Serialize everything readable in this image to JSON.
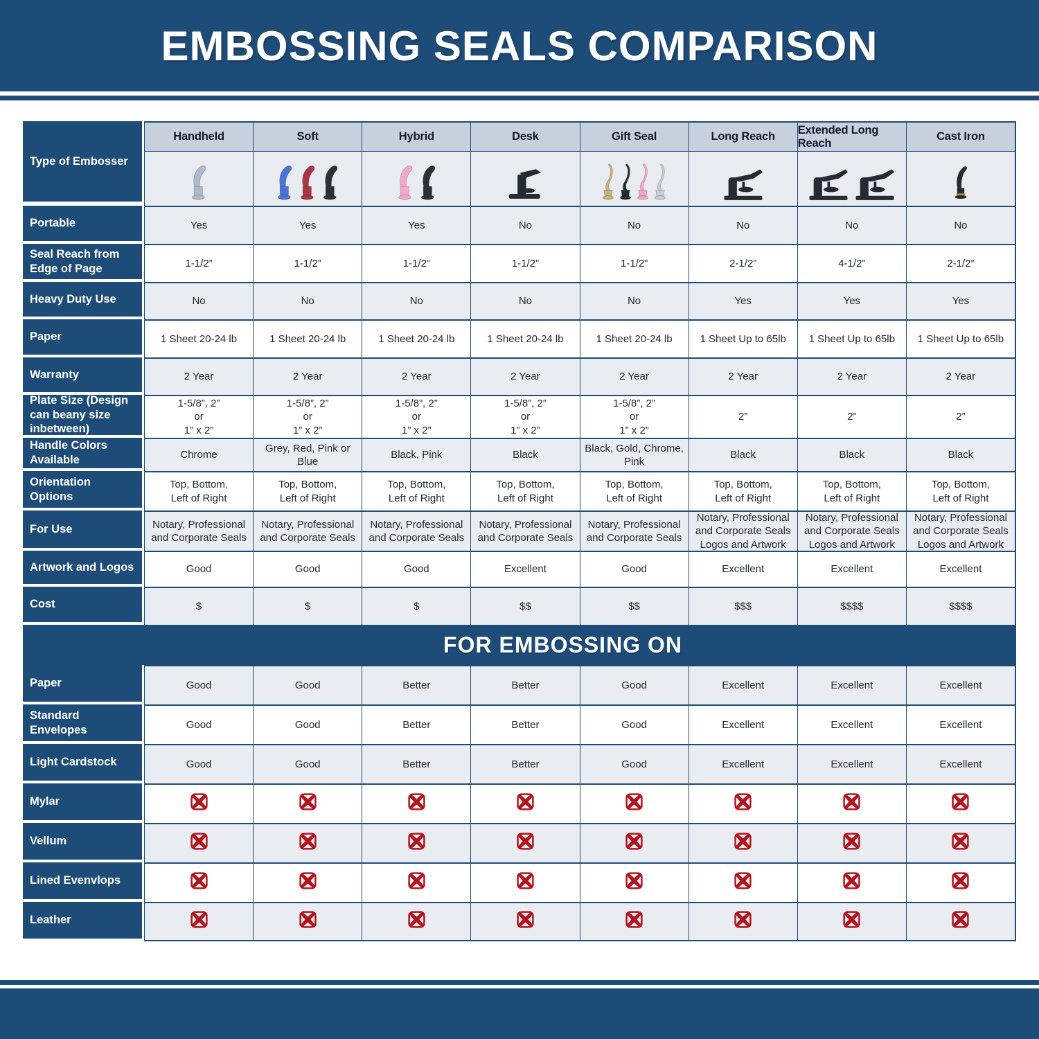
{
  "title": "EMBOSSING SEALS COMPARISON",
  "embossing_section_title": "FOR EMBOSSING ON",
  "type_of_embosser_label": "Type of Embosser",
  "columns": [
    "Handheld",
    "Soft",
    "Hybrid",
    "Desk",
    "Gift Seal",
    "Long Reach",
    "Extended Long Reach",
    "Cast Iron"
  ],
  "embosser_images": [
    {
      "column": "Handheld",
      "style": "hand",
      "colors": [
        "#aeb9cc"
      ]
    },
    {
      "column": "Soft",
      "style": "hand",
      "colors": [
        "#4a74d8",
        "#a93642",
        "#2c3038"
      ]
    },
    {
      "column": "Hybrid",
      "style": "hand",
      "colors": [
        "#f2a8cc",
        "#2c3038"
      ]
    },
    {
      "column": "Desk",
      "style": "desk",
      "colors": [
        "#262a33"
      ]
    },
    {
      "column": "Gift Seal",
      "style": "gift",
      "colors": [
        "#c9b478",
        "#262a33",
        "#f2a8cc",
        "#c6cdd9"
      ]
    },
    {
      "column": "Long Reach",
      "style": "press",
      "colors": [
        "#262a33"
      ]
    },
    {
      "column": "Extended Long Reach",
      "style": "press",
      "colors": [
        "#262a33",
        "#262a33"
      ]
    },
    {
      "column": "Cast Iron",
      "style": "cast",
      "colors": [
        "#262a33"
      ]
    }
  ],
  "spec_rows": [
    {
      "label": "Portable",
      "values": [
        "Yes",
        "Yes",
        "Yes",
        "No",
        "No",
        "No",
        "No",
        "No"
      ]
    },
    {
      "label": "Seal Reach from Edge of Page",
      "values": [
        "1-1/2”",
        "1-1/2”",
        "1-1/2”",
        "1-1/2”",
        "1-1/2”",
        "2-1/2”",
        "4-1/2”",
        "2-1/2”"
      ]
    },
    {
      "label": "Heavy Duty Use",
      "values": [
        "No",
        "No",
        "No",
        "No",
        "No",
        "Yes",
        "Yes",
        "Yes"
      ]
    },
    {
      "label": "Paper",
      "values": [
        "1 Sheet 20-24 lb",
        "1 Sheet 20-24 lb",
        "1 Sheet 20-24 lb",
        "1 Sheet 20-24 lb",
        "1 Sheet 20-24 lb",
        "1 Sheet Up to 65lb",
        "1 Sheet Up to 65lb",
        "1 Sheet Up to 65lb"
      ]
    },
    {
      "label": "Warranty",
      "values": [
        "2 Year",
        "2 Year",
        "2 Year",
        "2 Year",
        "2 Year",
        "2 Year",
        "2 Year",
        "2 Year"
      ]
    },
    {
      "label": "Plate Size (Design can beany size inbetween)",
      "values": [
        "1-5/8”, 2”\nor\n1” x 2”",
        "1-5/8”, 2”\nor\n1” x 2”",
        "1-5/8”, 2”\nor\n1” x 2”",
        "1-5/8”, 2”\nor\n1” x 2”",
        "1-5/8”, 2”\nor\n1” x 2”",
        "2”",
        "2”",
        "2”"
      ]
    },
    {
      "label": "Handle Colors Available",
      "values": [
        "Chrome",
        "Grey, Red, Pink or Blue",
        "Black, Pink",
        "Black",
        "Black, Gold, Chrome, Pink",
        "Black",
        "Black",
        "Black"
      ]
    },
    {
      "label": "Orientation Options",
      "values": [
        "Top, Bottom,\nLeft of Right",
        "Top, Bottom,\nLeft of Right",
        "Top, Bottom,\nLeft of Right",
        "Top, Bottom,\nLeft of Right",
        "Top, Bottom,\nLeft of Right",
        "Top, Bottom,\nLeft of Right",
        "Top, Bottom,\nLeft of Right",
        "Top, Bottom,\nLeft of Right"
      ]
    },
    {
      "label": "For Use",
      "values": [
        "Notary, Professional\nand Corporate Seals",
        "Notary, Professional\nand Corporate Seals",
        "Notary, Professional\nand Corporate Seals",
        "Notary, Professional\nand Corporate Seals",
        "Notary, Professional\nand Corporate Seals",
        "Notary, Professional\nand Corporate Seals\nLogos and Artwork",
        "Notary, Professional\nand Corporate Seals\nLogos and Artwork",
        "Notary, Professional\nand Corporate Seals\nLogos and Artwork"
      ]
    },
    {
      "label": "Artwork and Logos",
      "values": [
        "Good",
        "Good",
        "Good",
        "Excellent",
        "Good",
        "Excellent",
        "Excellent",
        "Excellent"
      ]
    },
    {
      "label": "Cost",
      "values": [
        "$",
        "$",
        "$",
        "$$",
        "$$",
        "$$$",
        "$$$$",
        "$$$$"
      ]
    }
  ],
  "embossing_rows": [
    {
      "label": "Paper",
      "values": [
        "Good",
        "Good",
        "Better",
        "Better",
        "Good",
        "Excellent",
        "Excellent",
        "Excellent"
      ]
    },
    {
      "label": "Standard Envelopes",
      "values": [
        "Good",
        "Good",
        "Better",
        "Better",
        "Good",
        "Excellent",
        "Excellent",
        "Excellent"
      ]
    },
    {
      "label": "Light Cardstock",
      "values": [
        "Good",
        "Good",
        "Better",
        "Better",
        "Good",
        "Excellent",
        "Excellent",
        "Excellent"
      ]
    },
    {
      "label": "Mylar",
      "values": [
        "x",
        "x",
        "x",
        "x",
        "x",
        "x",
        "x",
        "x"
      ]
    },
    {
      "label": "Vellum",
      "values": [
        "x",
        "x",
        "x",
        "x",
        "x",
        "x",
        "x",
        "x"
      ]
    },
    {
      "label": "Lined Evenvlops",
      "values": [
        "x",
        "x",
        "x",
        "x",
        "x",
        "x",
        "x",
        "x"
      ]
    },
    {
      "label": "Leather",
      "values": [
        "x",
        "x",
        "x",
        "x",
        "x",
        "x",
        "x",
        "x"
      ]
    }
  ],
  "x_icon": "not-supported-x-icon",
  "colors": {
    "navy": "#1e4c78",
    "header_cell_bg": "#c7d0dc",
    "image_cell_bg": "#e8ebef",
    "alt_row_bg": "#e9edf2",
    "x_red": "#b5121b"
  }
}
